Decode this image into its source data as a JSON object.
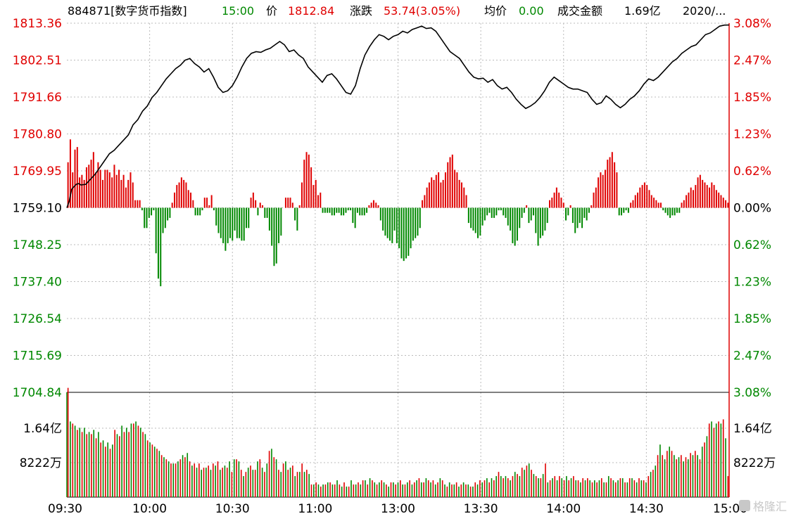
{
  "header": {
    "code_name": "884871[数字货币指数]",
    "time": "15:00",
    "price_label": "价",
    "price": "1812.84",
    "change_label": "涨跌",
    "change": "53.74(3.05%)",
    "avg_label": "均价",
    "avg": "0.00",
    "turnover_label": "成交金额",
    "turnover": "1.69亿",
    "date": "2020/..."
  },
  "colors": {
    "up": "#e00000",
    "down": "#008800",
    "line": "#000000",
    "grid": "#bbbbbb"
  },
  "watermark": "格隆汇",
  "chart_data": [
    {
      "type": "line",
      "series_name": "intraday-index",
      "prev_close": 1759.1,
      "ylim": [
        1704.84,
        1813.36
      ],
      "yticks_left": [
        "1813.36",
        "1802.51",
        "1791.66",
        "1780.80",
        "1769.95",
        "1759.10",
        "1748.25",
        "1737.40",
        "1726.54",
        "1715.69",
        "1704.84"
      ],
      "yticks_right": [
        "3.08%",
        "2.47%",
        "1.85%",
        "1.23%",
        "0.62%",
        "0.00%",
        "0.62%",
        "1.23%",
        "1.85%",
        "2.47%",
        "3.08%"
      ],
      "xticks": [
        "09:30",
        "10:00",
        "10:30",
        "11:00",
        "13:00",
        "13:30",
        "14:00",
        "14:30",
        "15:00"
      ],
      "price_path": [
        [
          0,
          1759.1
        ],
        [
          1,
          1761
        ],
        [
          2,
          1764.5
        ],
        [
          3,
          1765.3
        ],
        [
          4,
          1766
        ],
        [
          5,
          1766.2
        ],
        [
          6,
          1765.8
        ],
        [
          8,
          1766
        ],
        [
          10,
          1767.5
        ],
        [
          12,
          1769
        ],
        [
          14,
          1771
        ],
        [
          16,
          1773
        ],
        [
          18,
          1775
        ],
        [
          20,
          1776
        ],
        [
          22,
          1777.5
        ],
        [
          24,
          1779
        ],
        [
          26,
          1780.5
        ],
        [
          28,
          1783.5
        ],
        [
          30,
          1785
        ],
        [
          32,
          1787.5
        ],
        [
          34,
          1789
        ],
        [
          36,
          1791.5
        ],
        [
          38,
          1793
        ],
        [
          40,
          1795
        ],
        [
          42,
          1797
        ],
        [
          44,
          1798.5
        ],
        [
          46,
          1800
        ],
        [
          48,
          1801
        ],
        [
          50,
          1802.5
        ],
        [
          52,
          1803
        ],
        [
          54,
          1801.5
        ],
        [
          56,
          1800.5
        ],
        [
          58,
          1799
        ],
        [
          60,
          1800
        ],
        [
          62,
          1797.5
        ],
        [
          64,
          1794.5
        ],
        [
          66,
          1793
        ],
        [
          68,
          1793.5
        ],
        [
          70,
          1795
        ],
        [
          72,
          1797.5
        ],
        [
          74,
          1800.5
        ],
        [
          76,
          1803
        ],
        [
          78,
          1804.5
        ],
        [
          80,
          1805
        ],
        [
          82,
          1804.8
        ],
        [
          84,
          1805.5
        ],
        [
          86,
          1806
        ],
        [
          88,
          1807
        ],
        [
          90,
          1808
        ],
        [
          92,
          1807
        ],
        [
          94,
          1805
        ],
        [
          96,
          1805.5
        ],
        [
          98,
          1804
        ],
        [
          100,
          1803
        ],
        [
          102,
          1800.5
        ],
        [
          104,
          1799
        ],
        [
          106,
          1797.5
        ],
        [
          108,
          1796
        ],
        [
          110,
          1798
        ],
        [
          112,
          1798.5
        ],
        [
          114,
          1797
        ],
        [
          116,
          1795
        ],
        [
          118,
          1793
        ],
        [
          120,
          1792.5
        ],
        [
          122,
          1795
        ],
        [
          124,
          1800
        ],
        [
          126,
          1804
        ],
        [
          128,
          1806.5
        ],
        [
          130,
          1808.5
        ],
        [
          132,
          1810
        ],
        [
          134,
          1809.5
        ],
        [
          136,
          1808.5
        ],
        [
          138,
          1809.5
        ],
        [
          140,
          1810
        ],
        [
          142,
          1811
        ],
        [
          144,
          1810.5
        ],
        [
          146,
          1811.5
        ],
        [
          148,
          1812
        ],
        [
          150,
          1812.5
        ],
        [
          152,
          1811.8
        ],
        [
          154,
          1812
        ],
        [
          156,
          1811
        ],
        [
          158,
          1809
        ],
        [
          160,
          1807
        ],
        [
          162,
          1805
        ],
        [
          164,
          1804
        ],
        [
          166,
          1803
        ],
        [
          168,
          1801
        ],
        [
          170,
          1799
        ],
        [
          172,
          1797.5
        ],
        [
          174,
          1797
        ],
        [
          176,
          1797.2
        ],
        [
          178,
          1796
        ],
        [
          180,
          1796.8
        ],
        [
          182,
          1795
        ],
        [
          184,
          1794
        ],
        [
          186,
          1794.5
        ],
        [
          188,
          1793
        ],
        [
          190,
          1791
        ],
        [
          192,
          1789.5
        ],
        [
          194,
          1788.3
        ],
        [
          196,
          1789
        ],
        [
          198,
          1790
        ],
        [
          200,
          1791.5
        ],
        [
          202,
          1793.5
        ],
        [
          204,
          1796
        ],
        [
          206,
          1797.5
        ],
        [
          208,
          1796.5
        ],
        [
          210,
          1795.5
        ],
        [
          212,
          1794.5
        ],
        [
          214,
          1794
        ],
        [
          216,
          1794
        ],
        [
          218,
          1793.5
        ],
        [
          220,
          1793
        ],
        [
          222,
          1791
        ],
        [
          224,
          1789.5
        ],
        [
          226,
          1790
        ],
        [
          228,
          1792
        ],
        [
          230,
          1791
        ],
        [
          232,
          1789.5
        ],
        [
          234,
          1788.5
        ],
        [
          236,
          1789.5
        ],
        [
          238,
          1791
        ],
        [
          240,
          1792
        ],
        [
          242,
          1793.5
        ],
        [
          244,
          1795.5
        ],
        [
          246,
          1797
        ],
        [
          248,
          1796.5
        ],
        [
          250,
          1797.5
        ],
        [
          252,
          1799
        ],
        [
          254,
          1800.5
        ],
        [
          256,
          1802
        ],
        [
          258,
          1803
        ],
        [
          260,
          1804.5
        ],
        [
          262,
          1805.5
        ],
        [
          264,
          1806.5
        ],
        [
          266,
          1807
        ],
        [
          268,
          1808.5
        ],
        [
          270,
          1810
        ],
        [
          272,
          1810.5
        ],
        [
          274,
          1811.5
        ],
        [
          276,
          1812.5
        ],
        [
          278,
          1812.8
        ],
        [
          280,
          1812.84
        ]
      ],
      "change_bars": [
        18,
        27,
        14,
        23,
        24,
        12,
        13,
        11,
        16,
        17,
        19,
        22,
        14,
        18,
        15,
        11,
        15,
        15,
        14,
        12,
        17,
        13,
        15,
        11,
        13,
        8,
        11,
        14,
        10,
        3,
        3,
        3,
        -1,
        -8,
        -8,
        -4,
        -3,
        -1,
        -18,
        -28,
        -31,
        -10,
        -8,
        -5,
        -4,
        2,
        6,
        9,
        10,
        12,
        11,
        10,
        7,
        6,
        3,
        -3,
        -3,
        -3,
        -1,
        4,
        4,
        1,
        5,
        -1,
        -7,
        -10,
        -12,
        -14,
        -17,
        -14,
        -12,
        -13,
        -9,
        -12,
        -12,
        -13,
        -13,
        -8,
        -8,
        4,
        6,
        3,
        -3,
        2,
        1,
        -4,
        -4,
        -9,
        -15,
        -23,
        -22,
        -14,
        -11,
        0,
        4,
        4,
        4,
        2,
        -5,
        -9,
        1,
        10,
        19,
        22,
        21,
        16,
        9,
        11,
        5,
        6,
        -2,
        -2,
        -2,
        -2,
        -3,
        -3,
        -2,
        -2,
        -3,
        -3,
        -2,
        -1,
        -1,
        -6,
        -8,
        -2,
        -3,
        -3,
        -3,
        -2,
        1,
        2,
        3,
        2,
        1,
        -5,
        -9,
        -11,
        -12,
        -13,
        -14,
        -9,
        -14,
        -16,
        -20,
        -21,
        -20,
        -19,
        -16,
        -13,
        -12,
        -11,
        -8,
        3,
        5,
        8,
        10,
        12,
        11,
        13,
        14,
        10,
        11,
        14,
        18,
        20,
        21,
        15,
        14,
        11,
        10,
        8,
        5,
        -6,
        -8,
        -9,
        -10,
        -12,
        -11,
        -7,
        -5,
        -3,
        -2,
        -4,
        -4,
        -3,
        -1,
        -1,
        -3,
        -4,
        -7,
        -9,
        -14,
        -15,
        -13,
        -8,
        -4,
        -2,
        1,
        -6,
        -5,
        -3,
        -10,
        -15,
        -12,
        -11,
        -9,
        -6,
        3,
        4,
        6,
        8,
        6,
        4,
        2,
        -5,
        -3,
        1,
        -6,
        -10,
        -8,
        -6,
        -8,
        -4,
        -5,
        -2,
        1,
        6,
        8,
        12,
        14,
        13,
        15,
        19,
        20,
        22,
        18,
        14,
        -3,
        -3,
        -2,
        -1,
        -2,
        2,
        3,
        5,
        6,
        8,
        9,
        10,
        9,
        7,
        5,
        4,
        3,
        2,
        2,
        -1,
        -2,
        -3,
        -4,
        -3,
        -3,
        -2,
        -2,
        2,
        3,
        5,
        6,
        8,
        7,
        9,
        12,
        13,
        11,
        10,
        9,
        8,
        10,
        9,
        7,
        6,
        5,
        4,
        3,
        2
      ],
      "volume_bars": [
        5.2,
        3.6,
        3.5,
        3.4,
        3.2,
        3.3,
        3.1,
        3.3,
        3.0,
        3.1,
        3.0,
        3.2,
        2.8,
        3.1,
        2.6,
        2.7,
        2.4,
        2.6,
        2.3,
        2.5,
        3.2,
        3.0,
        2.9,
        3.4,
        3.1,
        3.3,
        3.1,
        3.5,
        3.5,
        3.6,
        3.4,
        3.3,
        3.1,
        3.0,
        2.7,
        2.6,
        2.5,
        2.4,
        2.3,
        2.2,
        2.0,
        1.9,
        1.8,
        1.7,
        1.6,
        1.6,
        1.6,
        1.7,
        1.8,
        2.0,
        1.9,
        2.1,
        1.7,
        1.5,
        1.6,
        1.4,
        1.6,
        1.3,
        1.4,
        1.4,
        1.5,
        1.3,
        1.6,
        1.5,
        1.7,
        1.3,
        1.4,
        1.5,
        1.4,
        1.7,
        1.2,
        1.8,
        1.8,
        1.7,
        1.3,
        1.0,
        1.2,
        1.4,
        1.5,
        1.3,
        1.3,
        1.7,
        1.8,
        1.4,
        1.2,
        1.6,
        2.2,
        2.3,
        1.9,
        1.8,
        1.3,
        1.2,
        1.6,
        1.7,
        1.3,
        1.4,
        1.5,
        1.0,
        1.2,
        1.2,
        1.6,
        1.2,
        1.3,
        1.1,
        0.6,
        0.6,
        0.7,
        0.6,
        0.5,
        0.6,
        0.6,
        0.7,
        0.7,
        0.6,
        0.6,
        0.8,
        0.6,
        0.5,
        0.7,
        0.5,
        0.5,
        0.8,
        0.6,
        0.6,
        0.7,
        0.6,
        0.8,
        0.8,
        0.6,
        0.9,
        0.8,
        0.7,
        0.6,
        0.7,
        0.8,
        0.7,
        0.6,
        0.5,
        0.7,
        0.7,
        0.6,
        0.7,
        0.8,
        0.6,
        0.6,
        0.7,
        0.8,
        0.6,
        0.7,
        0.8,
        0.9,
        0.7,
        0.7,
        0.9,
        0.8,
        0.7,
        0.8,
        0.6,
        0.7,
        0.9,
        0.8,
        0.6,
        0.5,
        0.7,
        0.6,
        0.6,
        0.7,
        0.5,
        0.6,
        0.7,
        0.6,
        0.6,
        0.5,
        0.5,
        0.7,
        0.6,
        0.8,
        0.7,
        0.8,
        0.9,
        0.7,
        0.9,
        0.8,
        1.0,
        1.2,
        1.0,
        0.9,
        1.0,
        0.9,
        0.8,
        1.0,
        1.2,
        1.1,
        1.0,
        1.4,
        1.3,
        1.5,
        1.6,
        1.3,
        1.1,
        1.0,
        0.9,
        0.9,
        1.1,
        1.6,
        0.7,
        0.8,
        0.9,
        1.0,
        0.8,
        1.0,
        0.9,
        0.8,
        1.0,
        0.8,
        0.9,
        1.0,
        0.8,
        0.8,
        0.7,
        0.9,
        0.8,
        0.9,
        0.8,
        0.7,
        0.8,
        0.7,
        0.8,
        0.9,
        0.7,
        0.7,
        1.0,
        0.9,
        0.8,
        0.7,
        0.8,
        0.9,
        0.9,
        0.7,
        0.7,
        0.9,
        0.9,
        0.8,
        0.7,
        0.9,
        0.8,
        0.8,
        0.7,
        1.0,
        1.2,
        1.3,
        1.5,
        2.0,
        2.5,
        2.0,
        1.8,
        2.2,
        2.4,
        2.2,
        2.0,
        1.8,
        1.9,
        2.0,
        1.7,
        1.9,
        1.8,
        2.1,
        2.0,
        2.2,
        2.0,
        1.8,
        2.4,
        2.6,
        2.9,
        3.5,
        3.6,
        3.3,
        3.5,
        3.6,
        3.5,
        3.7,
        2.8,
        1.0
      ],
      "volume_bar_colors": "alternate-up-down"
    },
    {
      "type": "bar",
      "series_name": "volume",
      "yticks_left": [
        "1.64亿",
        "8222万"
      ],
      "yticks_right": [
        "1.64亿",
        "8222万"
      ],
      "ylim": [
        0,
        1.64
      ]
    }
  ]
}
